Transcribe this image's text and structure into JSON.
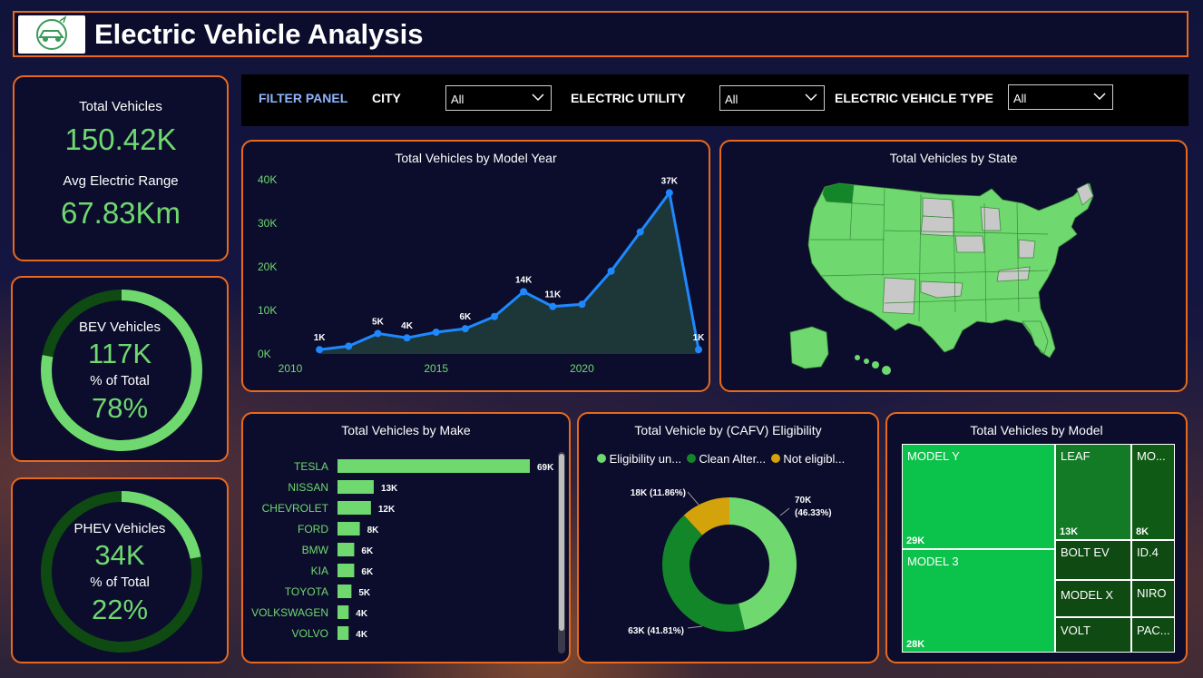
{
  "header": {
    "title": "Electric Vehicle Analysis",
    "logo_icon": "ev-car-logo-icon"
  },
  "kpi": {
    "total_label": "Total Vehicles",
    "total_value": "150.42K",
    "range_label": "Avg Electric Range",
    "range_value": "67.83Km"
  },
  "bev": {
    "label": "BEV Vehicles",
    "value": "117K",
    "pct_label": "% of Total",
    "pct_value": "78%",
    "fraction": 0.78
  },
  "phev": {
    "label": "PHEV Vehicles",
    "value": "34K",
    "pct_label": "% of Total",
    "pct_value": "22%",
    "fraction": 0.22
  },
  "filters": {
    "panel_label": "FILTER PANEL",
    "city_label": "CITY",
    "city_value": "All",
    "utility_label": "ELECTRIC UTILITY",
    "utility_value": "All",
    "type_label": "ELECTRIC VEHICLE TYPE",
    "type_value": "All"
  },
  "colors": {
    "accent_border": "#e8691d",
    "kpi_green": "#6fd96f",
    "line_blue": "#1e88ff",
    "dark_green": "#0f5a14",
    "mid_green": "#14862a",
    "gold": "#d4a20a"
  },
  "chart_data": [
    {
      "type": "line",
      "title": "Total Vehicles by Model Year",
      "x": [
        2011,
        2012,
        2013,
        2014,
        2015,
        2016,
        2017,
        2018,
        2019,
        2020,
        2021,
        2022,
        2023,
        2024
      ],
      "values": [
        1000,
        1800,
        4700,
        3700,
        5000,
        5800,
        8600,
        14300,
        10900,
        11400,
        19000,
        28000,
        37000,
        1000
      ],
      "data_labels": [
        {
          "x": 2011,
          "text": "1K"
        },
        {
          "x": 2013,
          "text": "5K"
        },
        {
          "x": 2014,
          "text": "4K"
        },
        {
          "x": 2016,
          "text": "6K"
        },
        {
          "x": 2018,
          "text": "14K"
        },
        {
          "x": 2019,
          "text": "11K"
        },
        {
          "x": 2023,
          "text": "37K"
        },
        {
          "x": 2024,
          "text": "1K"
        }
      ],
      "x_ticks": [
        "2010",
        "2015",
        "2020"
      ],
      "x_tick_values": [
        2010,
        2015,
        2020
      ],
      "y_ticks": [
        "0K",
        "10K",
        "20K",
        "30K",
        "40K"
      ],
      "y_tick_values": [
        0,
        10000,
        20000,
        30000,
        40000
      ],
      "xlim": [
        2010,
        2024
      ],
      "ylim": [
        0,
        40000
      ]
    },
    {
      "type": "map",
      "title": "Total Vehicles by State",
      "highlight": "Washington"
    },
    {
      "type": "bar",
      "title": "Total Vehicles by Make",
      "categories": [
        "TESLA",
        "NISSAN",
        "CHEVROLET",
        "FORD",
        "BMW",
        "KIA",
        "TOYOTA",
        "VOLKSWAGEN",
        "VOLVO"
      ],
      "values": [
        69,
        13,
        12,
        8,
        6,
        6,
        5,
        4,
        4
      ],
      "labels": [
        "69K",
        "13K",
        "12K",
        "8K",
        "6K",
        "6K",
        "5K",
        "4K",
        "4K"
      ],
      "xlim": [
        0,
        69
      ]
    },
    {
      "type": "pie",
      "title": "Total Vehicle by (CAFV) Eligibility",
      "legend": [
        "Eligibility un...",
        "Clean Alter...",
        "Not eligibl..."
      ],
      "values": [
        46.33,
        41.81,
        11.86
      ],
      "labels_line1": [
        "70K",
        "63K (41.81%)",
        "18K (11.86%)"
      ],
      "labels_line2": [
        "(46.33%)",
        "",
        ""
      ],
      "colors": [
        "#6fd96f",
        "#14862a",
        "#d4a20a"
      ]
    },
    {
      "type": "treemap",
      "title": "Total Vehicles by Model",
      "items": [
        {
          "name": "MODEL Y",
          "value": "29K"
        },
        {
          "name": "MODEL 3",
          "value": "28K"
        },
        {
          "name": "LEAF",
          "value": "13K"
        },
        {
          "name": "MO...",
          "value": "8K"
        },
        {
          "name": "BOLT EV",
          "value": ""
        },
        {
          "name": "ID.4",
          "value": ""
        },
        {
          "name": "MODEL X",
          "value": ""
        },
        {
          "name": "NIRO",
          "value": ""
        },
        {
          "name": "VOLT",
          "value": ""
        },
        {
          "name": "PAC...",
          "value": ""
        }
      ]
    }
  ]
}
